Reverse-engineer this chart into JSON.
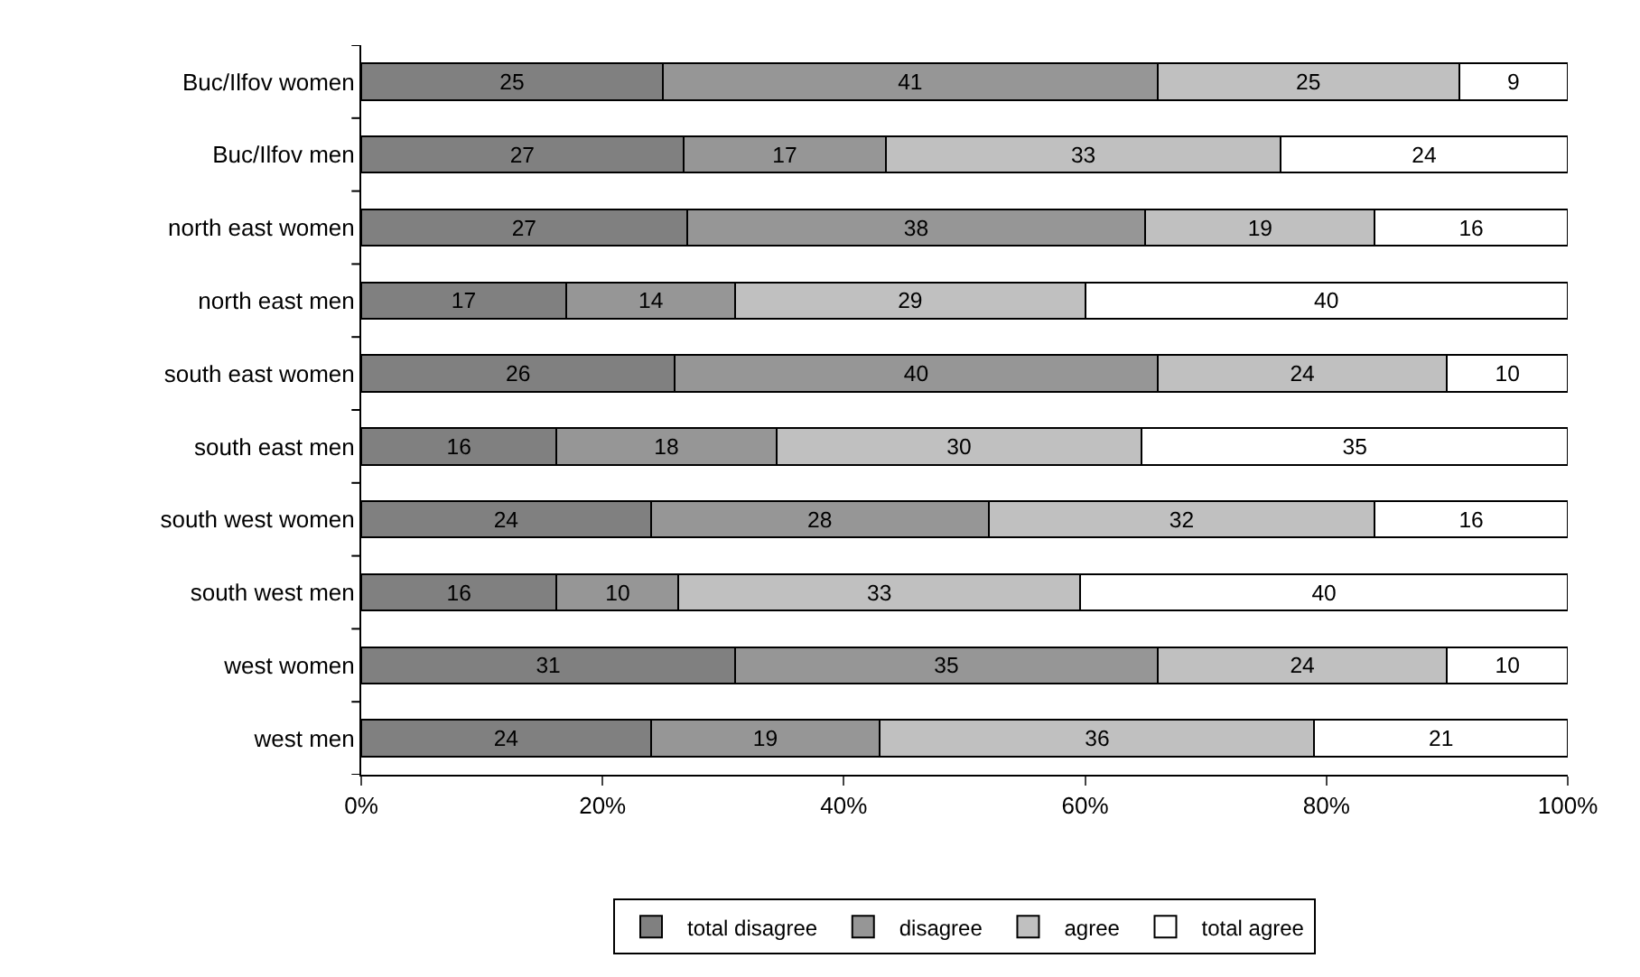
{
  "chart_data": {
    "type": "bar",
    "orientation": "horizontal",
    "stacked": true,
    "legend": "bottom",
    "categories": [
      "Buc/Ilfov women",
      "Buc/Ilfov men",
      "north east women",
      "north east men",
      "south east women",
      "south east men",
      "south west women",
      "south west men",
      "west women",
      "west men"
    ],
    "series": [
      {
        "name": "total disagree",
        "color": "#808080",
        "values": [
          25,
          26.7,
          27,
          17,
          26,
          16.2,
          24,
          16.2,
          31,
          24
        ],
        "value_labels": [
          "25",
          "27",
          "27",
          "17",
          "26",
          "16",
          "24",
          "16",
          "31",
          "24"
        ]
      },
      {
        "name": "disagree",
        "color": "#969696",
        "values": [
          41,
          16.8,
          38,
          14,
          40,
          18.2,
          28,
          10.1,
          35,
          19
        ],
        "value_labels": [
          "41",
          "17",
          "38",
          "14",
          "40",
          "18",
          "28",
          "10",
          "35",
          "19"
        ]
      },
      {
        "name": "agree",
        "color": "#c0c0c0",
        "values": [
          25,
          32.7,
          19,
          29,
          24,
          30.3,
          32,
          33.3,
          24,
          36
        ],
        "value_labels": [
          "25",
          "33",
          "19",
          "29",
          "24",
          "30",
          "32",
          "33",
          "24",
          "36"
        ]
      },
      {
        "name": "total agree",
        "color": "#ffffff",
        "values": [
          9,
          23.8,
          16,
          40,
          10,
          35.3,
          16,
          40.4,
          10,
          21
        ],
        "value_labels": [
          "9",
          "24",
          "16",
          "40",
          "10",
          "35",
          "16",
          "40",
          "10",
          "21"
        ]
      }
    ],
    "xlim": [
      0,
      100
    ],
    "xticks": [
      {
        "value": 0,
        "label": "0%"
      },
      {
        "value": 20,
        "label": "20%"
      },
      {
        "value": 40,
        "label": "40%"
      },
      {
        "value": 60,
        "label": "60%"
      },
      {
        "value": 80,
        "label": "80%"
      },
      {
        "value": 100,
        "label": "100%"
      }
    ]
  }
}
